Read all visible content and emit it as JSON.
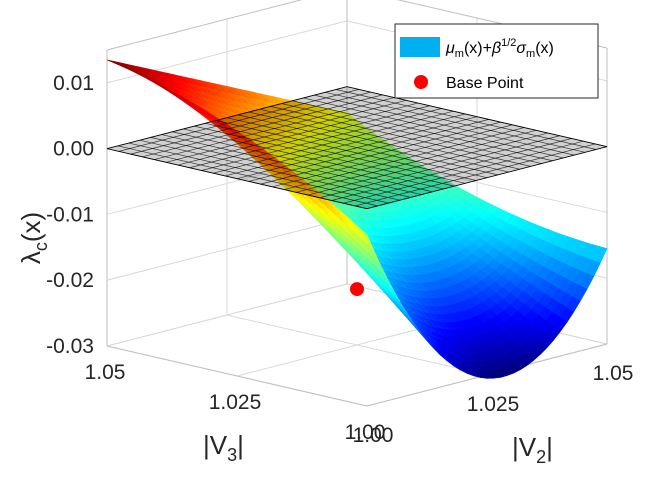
{
  "chart_data": {
    "type": "surface3d",
    "title": "",
    "xlabel": "|V2|",
    "ylabel": "|V3|",
    "zlabel": "λc(x)",
    "x_range": [
      1.0,
      1.05
    ],
    "y_range": [
      1.0,
      1.05
    ],
    "z_range": [
      -0.03,
      0.015
    ],
    "x_ticks": [
      "1.00",
      "1.025",
      "1.05"
    ],
    "y_ticks": [
      "1.00",
      "1.025",
      "1.05"
    ],
    "z_ticks": [
      "-0.03",
      "-0.02",
      "-0.01",
      "0.00",
      "0.01"
    ],
    "surface_corners": {
      "v2_1.00_v3_1.00": -0.004,
      "v2_1.05_v3_1.00": -0.0155,
      "v2_1.00_v3_1.05": 0.0135,
      "v2_1.05_v3_1.05": -0.004
    },
    "surface_min": {
      "v2": 1.024,
      "v3": 1.0,
      "z": -0.0305
    },
    "plane_level": 0.0,
    "base_point": {
      "v2": 1.025,
      "v3": 1.025,
      "z": -0.0215,
      "label": "Base Point",
      "color": "#ff0000"
    },
    "legend": [
      {
        "label": "μm(x)+β1/2σm(x)",
        "color": "#00b0f0",
        "kind": "patch"
      },
      {
        "label": "Base Point",
        "color": "#ff0000",
        "kind": "marker"
      }
    ],
    "legend_position": "top-right",
    "colormap": "jet",
    "grid": true
  },
  "legend_text": {
    "mu": "μ",
    "m": "m",
    "x1": "(x)+",
    "beta": "β",
    "half": "1/2",
    "sigma": "σ",
    "x2": "(x)",
    "base": "Base Point"
  },
  "labels": {
    "lambda": "λ",
    "c": "c",
    "x": "(x)",
    "V": "|V",
    "two": "2",
    "three": "3",
    "bar": "|"
  }
}
